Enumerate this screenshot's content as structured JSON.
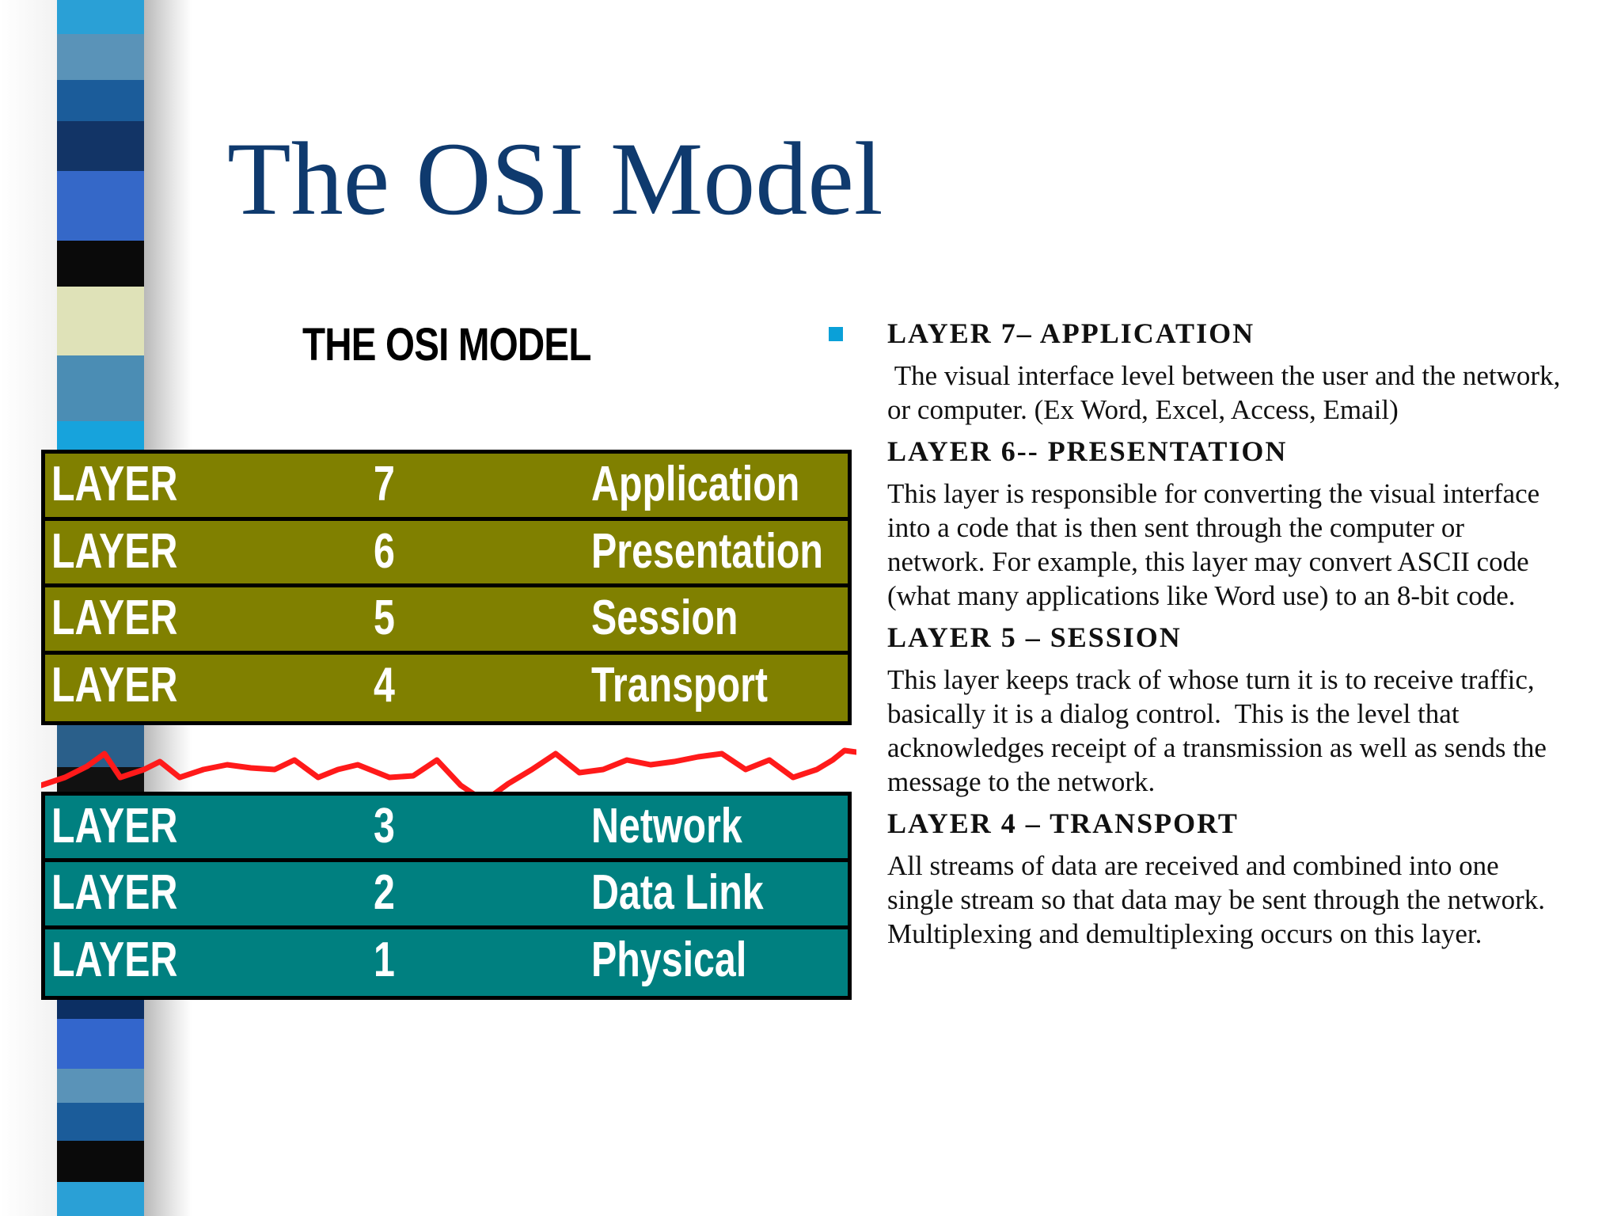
{
  "slide": {
    "title": "The OSI Model"
  },
  "diagram": {
    "title": "THE OSI MODEL",
    "upper_layers": [
      {
        "word": "LAYER",
        "number": "7",
        "name": "Application"
      },
      {
        "word": "LAYER",
        "number": "6",
        "name": "Presentation"
      },
      {
        "word": "LAYER",
        "number": "5",
        "name": "Session"
      },
      {
        "word": "LAYER",
        "number": "4",
        "name": "Transport"
      }
    ],
    "lower_layers": [
      {
        "word": "LAYER",
        "number": "3",
        "name": "Network"
      },
      {
        "word": "LAYER",
        "number": "2",
        "name": "Data Link"
      },
      {
        "word": "LAYER",
        "number": "1",
        "name": "Physical"
      }
    ]
  },
  "descriptions": [
    {
      "heading": "LAYER 7– APPLICATION",
      "body": " The visual interface level between the user and the network, or computer. (Ex Word, Excel, Access, Email)"
    },
    {
      "heading": "LAYER 6-- PRESENTATION",
      "body": "This layer is responsible for converting the visual interface into a code that is then sent through the computer or network. For example, this layer may convert ASCII code (what many applications like Word use) to an 8-bit code."
    },
    {
      "heading": "LAYER 5 – SESSION",
      "body": "This layer keeps track of whose turn it is to receive traffic, basically it is a dialog control.  This is the level that acknowledges receipt of a transmission as well as sends the message to the network."
    },
    {
      "heading": "LAYER 4 – TRANSPORT",
      "body": "All streams of data are received and combined into one single stream so that data may be sent through the network.  Multiplexing and demultiplexing occurs on this layer."
    }
  ],
  "colors": {
    "title": "#0f3a6e",
    "upper_fill": "#808000",
    "lower_fill": "#008080",
    "divider": "#ff1a1a",
    "bullet": "#0aa0d8"
  }
}
